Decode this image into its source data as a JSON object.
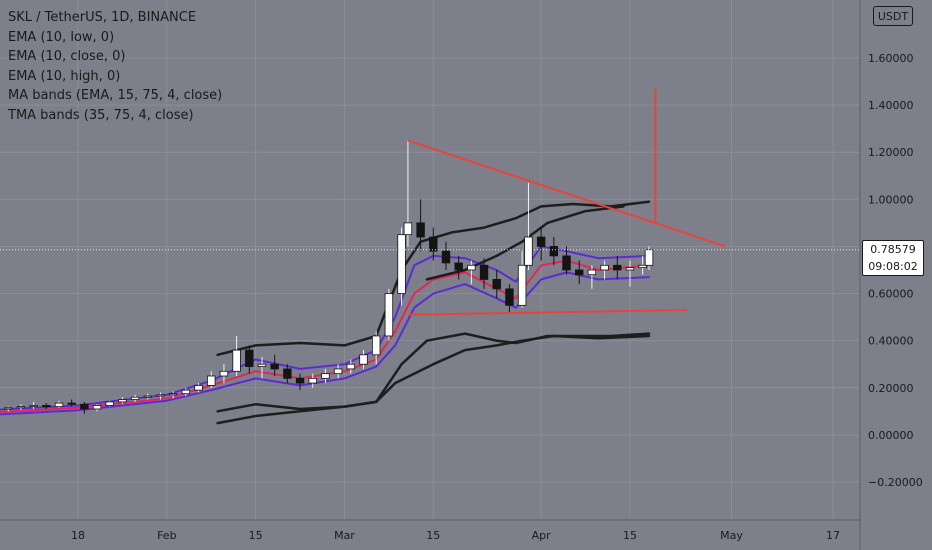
{
  "legend": {
    "symbol": "SKL / TetherUS, 1D, BINANCE",
    "indicators": [
      "EMA (10, low, 0)",
      "EMA (10, close, 0)",
      "EMA (10, high, 0)",
      "MA bands (EMA, 15, 75, 4, close)",
      "TMA bands (35, 75, 4, close)"
    ]
  },
  "price_axis": {
    "currency": "USDT"
  },
  "last_price": {
    "value": "0.78579",
    "countdown": "09:08:02"
  },
  "colors": {
    "background": "#7d808a",
    "ema_close": "#e5255a",
    "ema_band": "#5b2bd6",
    "outer_band": "#1e1e1e",
    "trendline": "#e8443a",
    "candle_up": "#ffffff",
    "candle_down": "#141414"
  },
  "chart_data": {
    "type": "candlestick",
    "y_ticks": [
      "1.60000",
      "1.40000",
      "1.20000",
      "1.00000",
      "0.80000",
      "0.60000",
      "0.40000",
      "0.20000",
      "0.00000",
      "−0.20000"
    ],
    "y_tick_values": [
      1.6,
      1.4,
      1.2,
      1.0,
      0.8,
      0.6,
      0.4,
      0.2,
      0.0,
      -0.2
    ],
    "x_ticks": [
      "18",
      "Feb",
      "15",
      "Mar",
      "15",
      "Apr",
      "15",
      "May",
      "17"
    ],
    "x_tick_dates": [
      "2021-01-18",
      "2021-02-01",
      "2021-02-15",
      "2021-03-01",
      "2021-03-15",
      "2021-04-01",
      "2021-04-15",
      "2021-05-01",
      "2021-05-17"
    ],
    "ylim": [
      -0.27,
      1.78
    ],
    "grid": true,
    "series": [
      {
        "type": "candles",
        "role": "price",
        "points": [
          [
            "2021-01-05",
            0.1,
            0.115,
            0.095,
            0.11
          ],
          [
            "2021-01-07",
            0.11,
            0.12,
            0.1,
            0.115
          ],
          [
            "2021-01-09",
            0.115,
            0.13,
            0.105,
            0.12
          ],
          [
            "2021-01-11",
            0.12,
            0.14,
            0.11,
            0.125
          ],
          [
            "2021-01-13",
            0.125,
            0.135,
            0.11,
            0.12
          ],
          [
            "2021-01-15",
            0.12,
            0.145,
            0.115,
            0.135
          ],
          [
            "2021-01-17",
            0.135,
            0.15,
            0.12,
            0.13
          ],
          [
            "2021-01-19",
            0.13,
            0.14,
            0.09,
            0.11
          ],
          [
            "2021-01-21",
            0.11,
            0.13,
            0.1,
            0.125
          ],
          [
            "2021-01-23",
            0.125,
            0.145,
            0.12,
            0.14
          ],
          [
            "2021-01-25",
            0.14,
            0.16,
            0.13,
            0.15
          ],
          [
            "2021-01-27",
            0.15,
            0.17,
            0.14,
            0.16
          ],
          [
            "2021-01-29",
            0.16,
            0.175,
            0.15,
            0.165
          ],
          [
            "2021-01-31",
            0.165,
            0.18,
            0.15,
            0.17
          ],
          [
            "2021-02-02",
            0.17,
            0.185,
            0.155,
            0.175
          ],
          [
            "2021-02-04",
            0.175,
            0.2,
            0.165,
            0.19
          ],
          [
            "2021-02-06",
            0.19,
            0.22,
            0.18,
            0.21
          ],
          [
            "2021-02-08",
            0.21,
            0.27,
            0.2,
            0.25
          ],
          [
            "2021-02-10",
            0.25,
            0.3,
            0.22,
            0.27
          ],
          [
            "2021-02-12",
            0.27,
            0.42,
            0.25,
            0.36
          ],
          [
            "2021-02-14",
            0.36,
            0.38,
            0.26,
            0.29
          ],
          [
            "2021-02-16",
            0.29,
            0.33,
            0.24,
            0.3
          ],
          [
            "2021-02-18",
            0.3,
            0.34,
            0.25,
            0.28
          ],
          [
            "2021-02-20",
            0.28,
            0.3,
            0.22,
            0.24
          ],
          [
            "2021-02-22",
            0.24,
            0.26,
            0.19,
            0.22
          ],
          [
            "2021-02-24",
            0.22,
            0.26,
            0.2,
            0.24
          ],
          [
            "2021-02-26",
            0.24,
            0.28,
            0.22,
            0.26
          ],
          [
            "2021-02-28",
            0.26,
            0.3,
            0.24,
            0.28
          ],
          [
            "2021-03-02",
            0.28,
            0.32,
            0.26,
            0.3
          ],
          [
            "2021-03-04",
            0.3,
            0.36,
            0.28,
            0.34
          ],
          [
            "2021-03-06",
            0.34,
            0.44,
            0.3,
            0.42
          ],
          [
            "2021-03-08",
            0.42,
            0.62,
            0.4,
            0.6
          ],
          [
            "2021-03-10",
            0.6,
            0.88,
            0.55,
            0.85
          ],
          [
            "2021-03-11",
            0.85,
            1.25,
            0.8,
            0.9
          ],
          [
            "2021-03-13",
            0.9,
            1.0,
            0.78,
            0.84
          ],
          [
            "2021-03-15",
            0.84,
            0.88,
            0.74,
            0.78
          ],
          [
            "2021-03-17",
            0.78,
            0.82,
            0.7,
            0.73
          ],
          [
            "2021-03-19",
            0.73,
            0.76,
            0.66,
            0.7
          ],
          [
            "2021-03-21",
            0.7,
            0.74,
            0.64,
            0.72
          ],
          [
            "2021-03-23",
            0.72,
            0.75,
            0.62,
            0.66
          ],
          [
            "2021-03-25",
            0.66,
            0.7,
            0.58,
            0.62
          ],
          [
            "2021-03-27",
            0.62,
            0.64,
            0.52,
            0.55
          ],
          [
            "2021-03-29",
            0.55,
            0.78,
            0.54,
            0.72
          ],
          [
            "2021-03-30",
            0.72,
            1.07,
            0.7,
            0.84
          ],
          [
            "2021-04-01",
            0.84,
            0.88,
            0.74,
            0.8
          ],
          [
            "2021-04-03",
            0.8,
            0.84,
            0.72,
            0.76
          ],
          [
            "2021-04-05",
            0.76,
            0.8,
            0.68,
            0.7
          ],
          [
            "2021-04-07",
            0.7,
            0.74,
            0.64,
            0.68
          ],
          [
            "2021-04-09",
            0.68,
            0.72,
            0.62,
            0.7
          ],
          [
            "2021-04-11",
            0.7,
            0.74,
            0.66,
            0.72
          ],
          [
            "2021-04-13",
            0.72,
            0.76,
            0.66,
            0.7
          ],
          [
            "2021-04-15",
            0.7,
            0.74,
            0.63,
            0.71
          ],
          [
            "2021-04-17",
            0.71,
            0.76,
            0.68,
            0.72
          ],
          [
            "2021-04-18",
            0.72,
            0.8,
            0.7,
            0.786
          ]
        ]
      },
      {
        "type": "line",
        "role": "ema_close",
        "color": "#e5255a",
        "points": [
          [
            "2021-01-01",
            0.09
          ],
          [
            "2021-01-18",
            0.115
          ],
          [
            "2021-02-01",
            0.155
          ],
          [
            "2021-02-08",
            0.21
          ],
          [
            "2021-02-15",
            0.27
          ],
          [
            "2021-02-22",
            0.24
          ],
          [
            "2021-03-01",
            0.27
          ],
          [
            "2021-03-06",
            0.32
          ],
          [
            "2021-03-09",
            0.44
          ],
          [
            "2021-03-12",
            0.6
          ],
          [
            "2021-03-15",
            0.66
          ],
          [
            "2021-03-20",
            0.69
          ],
          [
            "2021-03-25",
            0.62
          ],
          [
            "2021-03-28",
            0.58
          ],
          [
            "2021-04-01",
            0.72
          ],
          [
            "2021-04-05",
            0.74
          ],
          [
            "2021-04-10",
            0.7
          ],
          [
            "2021-04-18",
            0.72
          ]
        ]
      },
      {
        "type": "line",
        "role": "ema_band_upper",
        "color": "#5b2bd6",
        "points": [
          [
            "2021-01-01",
            0.1
          ],
          [
            "2021-01-18",
            0.125
          ],
          [
            "2021-02-01",
            0.17
          ],
          [
            "2021-02-08",
            0.23
          ],
          [
            "2021-02-15",
            0.32
          ],
          [
            "2021-02-22",
            0.28
          ],
          [
            "2021-03-01",
            0.3
          ],
          [
            "2021-03-06",
            0.36
          ],
          [
            "2021-03-09",
            0.5
          ],
          [
            "2021-03-12",
            0.72
          ],
          [
            "2021-03-15",
            0.76
          ],
          [
            "2021-03-20",
            0.75
          ],
          [
            "2021-03-25",
            0.7
          ],
          [
            "2021-03-28",
            0.65
          ],
          [
            "2021-04-01",
            0.8
          ],
          [
            "2021-04-05",
            0.78
          ],
          [
            "2021-04-10",
            0.75
          ],
          [
            "2021-04-18",
            0.76
          ]
        ]
      },
      {
        "type": "line",
        "role": "ema_band_lower",
        "color": "#5b2bd6",
        "points": [
          [
            "2021-01-01",
            0.08
          ],
          [
            "2021-01-18",
            0.105
          ],
          [
            "2021-02-01",
            0.145
          ],
          [
            "2021-02-08",
            0.19
          ],
          [
            "2021-02-15",
            0.24
          ],
          [
            "2021-02-22",
            0.21
          ],
          [
            "2021-03-01",
            0.24
          ],
          [
            "2021-03-06",
            0.29
          ],
          [
            "2021-03-09",
            0.38
          ],
          [
            "2021-03-12",
            0.54
          ],
          [
            "2021-03-15",
            0.6
          ],
          [
            "2021-03-20",
            0.64
          ],
          [
            "2021-03-25",
            0.58
          ],
          [
            "2021-03-28",
            0.54
          ],
          [
            "2021-04-01",
            0.66
          ],
          [
            "2021-04-05",
            0.69
          ],
          [
            "2021-04-10",
            0.66
          ],
          [
            "2021-04-18",
            0.67
          ]
        ]
      },
      {
        "type": "line",
        "role": "outer_band_upper",
        "color": "#1e1e1e",
        "points": [
          [
            "2021-02-09",
            0.34
          ],
          [
            "2021-02-15",
            0.38
          ],
          [
            "2021-02-22",
            0.39
          ],
          [
            "2021-03-01",
            0.38
          ],
          [
            "2021-03-06",
            0.42
          ],
          [
            "2021-03-10",
            0.7
          ],
          [
            "2021-03-13",
            0.82
          ],
          [
            "2021-03-18",
            0.86
          ],
          [
            "2021-03-23",
            0.88
          ],
          [
            "2021-03-28",
            0.92
          ],
          [
            "2021-04-01",
            0.97
          ],
          [
            "2021-04-06",
            0.98
          ],
          [
            "2021-04-12",
            0.97
          ],
          [
            "2021-04-18",
            0.99
          ]
        ]
      },
      {
        "type": "line",
        "role": "middle_band_upper",
        "color": "#1e1e1e",
        "points": [
          [
            "2021-03-14",
            0.66
          ],
          [
            "2021-03-20",
            0.7
          ],
          [
            "2021-03-25",
            0.76
          ],
          [
            "2021-03-29",
            0.82
          ],
          [
            "2021-04-02",
            0.9
          ],
          [
            "2021-04-08",
            0.95
          ],
          [
            "2021-04-14",
            0.97
          ]
        ]
      },
      {
        "type": "line",
        "role": "outer_band_lower",
        "color": "#1e1e1e",
        "points": [
          [
            "2021-02-09",
            0.1
          ],
          [
            "2021-02-15",
            0.13
          ],
          [
            "2021-02-22",
            0.11
          ],
          [
            "2021-03-01",
            0.12
          ],
          [
            "2021-03-06",
            0.14
          ],
          [
            "2021-03-10",
            0.3
          ],
          [
            "2021-03-14",
            0.4
          ],
          [
            "2021-03-20",
            0.43
          ],
          [
            "2021-03-25",
            0.4
          ],
          [
            "2021-03-28",
            0.39
          ],
          [
            "2021-04-02",
            0.42
          ],
          [
            "2021-04-06",
            0.42
          ],
          [
            "2021-04-12",
            0.42
          ],
          [
            "2021-04-18",
            0.43
          ]
        ]
      },
      {
        "type": "line",
        "role": "middle_band_lower",
        "color": "#1e1e1e",
        "points": [
          [
            "2021-02-09",
            0.05
          ],
          [
            "2021-02-15",
            0.08
          ],
          [
            "2021-02-22",
            0.1
          ],
          [
            "2021-03-01",
            0.12
          ],
          [
            "2021-03-06",
            0.14
          ],
          [
            "2021-03-09",
            0.22
          ],
          [
            "2021-03-12",
            0.26
          ],
          [
            "2021-03-15",
            0.3
          ],
          [
            "2021-03-20",
            0.36
          ],
          [
            "2021-03-25",
            0.38
          ],
          [
            "2021-03-29",
            0.4
          ],
          [
            "2021-04-03",
            0.42
          ],
          [
            "2021-04-10",
            0.41
          ],
          [
            "2021-04-18",
            0.42
          ]
        ]
      }
    ],
    "drawings": [
      {
        "role": "trendline",
        "color": "#e8443a",
        "points": [
          [
            "2021-03-11",
            1.25
          ],
          [
            "2021-04-30",
            0.8
          ]
        ]
      },
      {
        "role": "trendline",
        "color": "#e8443a",
        "points": [
          [
            "2021-03-11",
            0.51
          ],
          [
            "2021-04-24",
            0.53
          ]
        ]
      },
      {
        "role": "trendline",
        "color": "#e8443a",
        "points": [
          [
            "2021-04-19",
            1.47
          ],
          [
            "2021-04-19",
            0.9
          ]
        ]
      }
    ],
    "last_price_value": 0.78579
  }
}
